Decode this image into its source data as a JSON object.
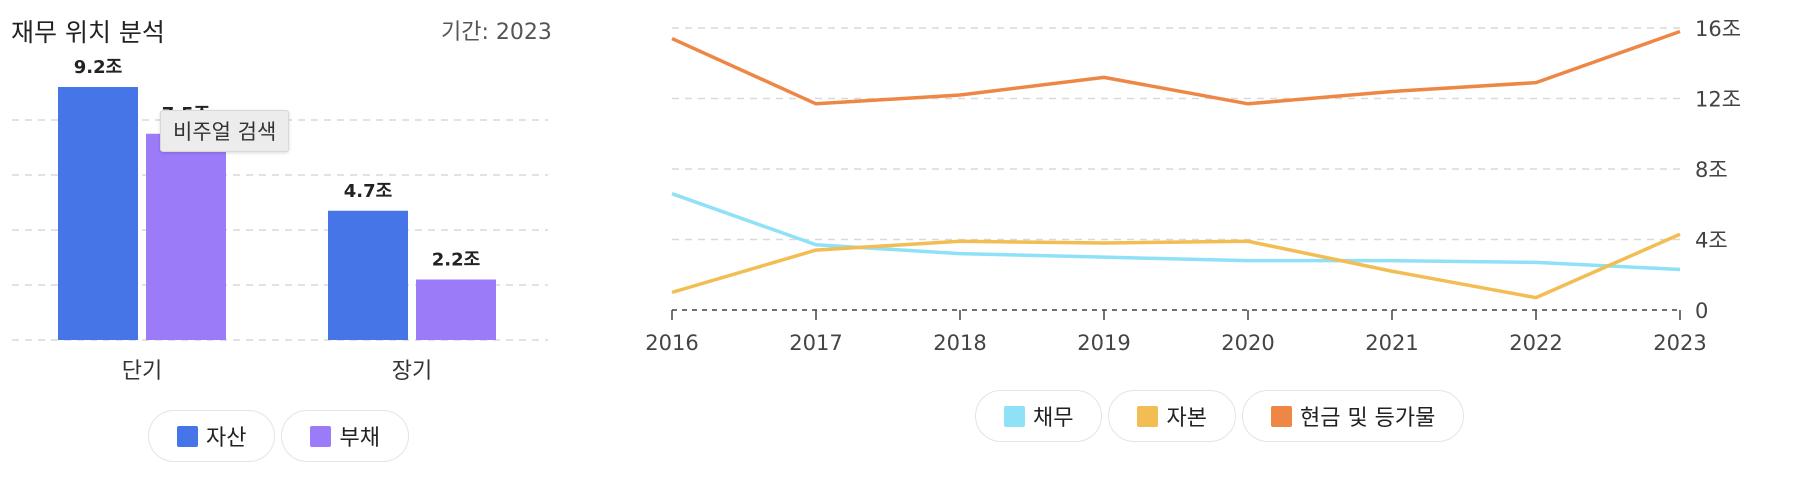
{
  "header": {
    "title": "재무 위치 분석",
    "period": "기간: 2023"
  },
  "tooltip": {
    "text": "비주얼 검색"
  },
  "colors": {
    "asset": "#4575E6",
    "liability": "#9B7BF7",
    "debt": "#8FE1F7",
    "equity": "#F2BD52",
    "cash": "#EE8746",
    "grid": "#d9d9d9"
  },
  "chart_data": [
    {
      "type": "bar",
      "categories": [
        "단기",
        "장기"
      ],
      "series": [
        {
          "name": "자산",
          "values": [
            9.2,
            4.7
          ],
          "labels": [
            "9.2조",
            "4.7조"
          ]
        },
        {
          "name": "부채",
          "values": [
            7.5,
            2.2
          ],
          "labels": [
            "7.5조",
            "2.2조"
          ]
        }
      ],
      "ylim": [
        0,
        10
      ],
      "grid": true,
      "legend": "bottom"
    },
    {
      "type": "line",
      "x": [
        "2016",
        "2017",
        "2018",
        "2019",
        "2020",
        "2021",
        "2022",
        "2023"
      ],
      "series": [
        {
          "name": "채무",
          "values": [
            6.6,
            3.7,
            3.2,
            3.0,
            2.8,
            2.8,
            2.7,
            2.3
          ]
        },
        {
          "name": "자본",
          "values": [
            1.0,
            3.4,
            3.9,
            3.8,
            3.9,
            2.2,
            0.7,
            4.3
          ]
        },
        {
          "name": "현금 및 등가물",
          "values": [
            15.4,
            11.7,
            12.2,
            13.2,
            11.7,
            12.4,
            12.9,
            15.8
          ]
        }
      ],
      "yticks": [
        "0",
        "4조",
        "8조",
        "12조",
        "16조"
      ],
      "ylim": [
        0,
        16
      ],
      "grid": true,
      "legend": "bottom"
    }
  ]
}
